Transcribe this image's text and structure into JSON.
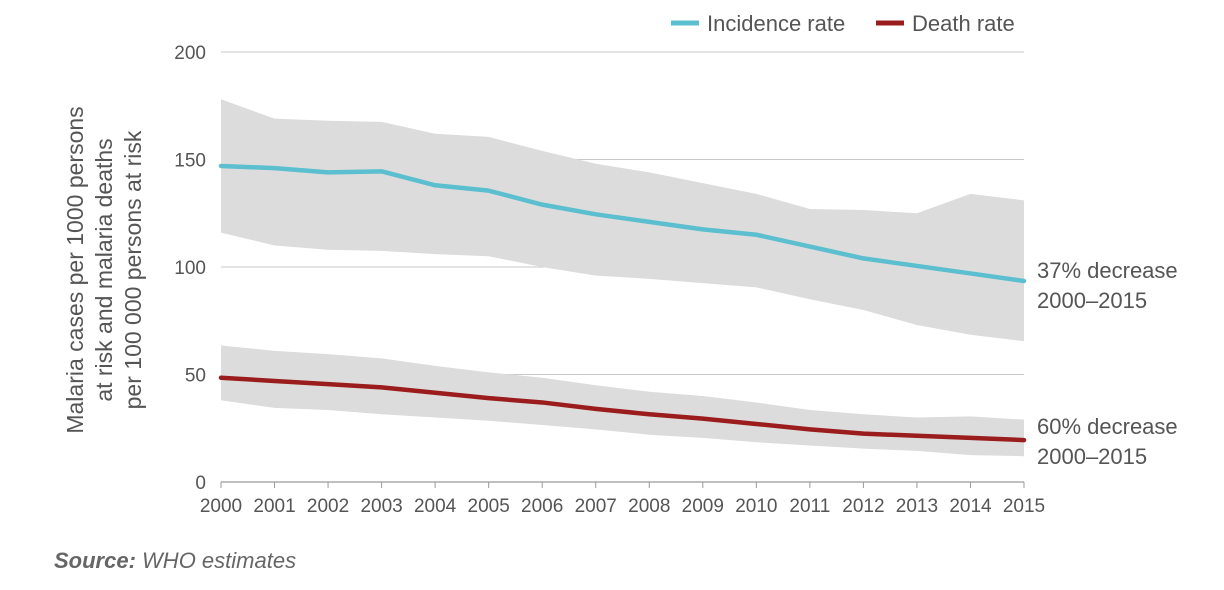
{
  "chart_data": {
    "type": "line",
    "x": [
      2000,
      2001,
      2002,
      2003,
      2004,
      2005,
      2006,
      2007,
      2008,
      2009,
      2010,
      2011,
      2012,
      2013,
      2014,
      2015
    ],
    "ylabel_lines": [
      "Malaria cases per 1000 persons",
      "at risk and malaria deaths",
      "per 100 000 persons at risk"
    ],
    "ylim": [
      0,
      200
    ],
    "yticks": [
      0,
      50,
      100,
      150,
      200
    ],
    "grid": "horizontal",
    "legend_position": "top-right",
    "series": [
      {
        "name": "Incidence rate",
        "color": "#5bbfcf",
        "values": [
          147,
          146,
          144,
          144.5,
          138,
          135.5,
          129,
          124.5,
          121,
          117.5,
          115,
          109.5,
          104,
          100.5,
          97,
          93.5
        ],
        "upper": [
          178,
          169,
          168,
          167.5,
          162,
          160.5,
          154,
          148,
          144,
          139,
          134,
          127,
          126.5,
          125,
          134,
          131
        ],
        "lower": [
          116,
          110,
          108,
          107.5,
          106,
          105,
          100,
          96,
          94.5,
          92.5,
          90.5,
          85,
          80,
          73,
          68.5,
          65.5
        ],
        "annotation": [
          "37% decrease",
          "2000–2015"
        ]
      },
      {
        "name": "Death rate",
        "color": "#9b1c1c",
        "values": [
          48.5,
          47,
          45.5,
          44,
          41.5,
          39,
          37,
          34,
          31.5,
          29.5,
          27,
          24.5,
          22.5,
          21.5,
          20.5,
          19.5
        ],
        "upper": [
          63.5,
          61,
          59.5,
          57.5,
          54,
          51,
          48.5,
          45,
          42,
          40,
          37,
          33.5,
          31.5,
          30,
          30.5,
          29
        ],
        "lower": [
          38,
          34.5,
          33.5,
          31.5,
          30,
          28.5,
          26.5,
          24.5,
          22,
          20.5,
          18.5,
          17,
          15.5,
          14.5,
          12.5,
          12
        ],
        "annotation": [
          "60% decrease",
          "2000–2015"
        ]
      }
    ],
    "band_color": "#dcdcdc",
    "grid_color": "#c8c8c8"
  },
  "source": {
    "label": "Source:",
    "text": "WHO estimates"
  }
}
